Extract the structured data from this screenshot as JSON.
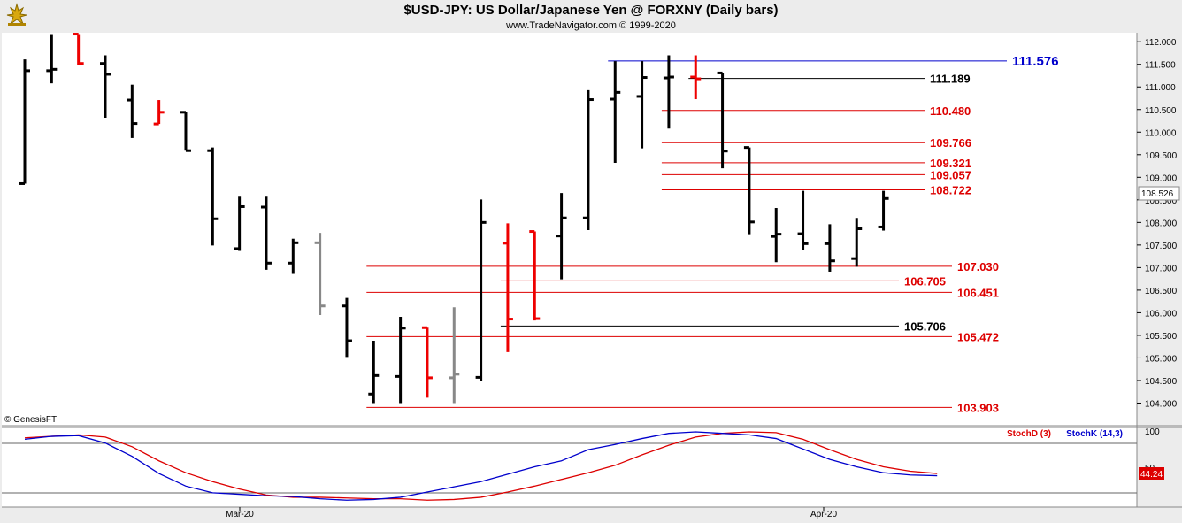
{
  "header": {
    "title": "$USD-JPY:  US Dollar/Japanese Yen @ FORXNY  (Daily bars)",
    "subtitle": "www.TradeNavigator.com © 1999-2020",
    "copyright": "© GenesisFT"
  },
  "chart_data": [
    {
      "type": "ohlc",
      "ylim": [
        103.5,
        112.2
      ],
      "price_ticks": [
        "112.000",
        "111.500",
        "111.000",
        "110.500",
        "110.000",
        "109.500",
        "109.000",
        "108.500",
        "108.000",
        "107.500",
        "107.000",
        "106.500",
        "106.000",
        "105.500",
        "105.000",
        "104.500",
        "104.000"
      ],
      "last_price_label": "108.526",
      "x_ticks": [
        "Mar-20",
        "Apr-20"
      ],
      "bars": [
        {
          "o": 108.86,
          "h": 111.61,
          "l": 108.86,
          "c": 111.36,
          "color": "black"
        },
        {
          "o": 111.36,
          "h": 112.17,
          "l": 111.08,
          "c": 111.39,
          "color": "black"
        },
        {
          "o": 112.17,
          "h": 112.17,
          "l": 111.48,
          "c": 111.52,
          "color": "red"
        },
        {
          "o": 111.52,
          "h": 111.7,
          "l": 110.32,
          "c": 111.28,
          "color": "black"
        },
        {
          "o": 110.71,
          "h": 111.05,
          "l": 109.87,
          "c": 110.19,
          "color": "black"
        },
        {
          "o": 110.18,
          "h": 110.71,
          "l": 110.18,
          "c": 110.44,
          "color": "red"
        },
        {
          "o": 110.44,
          "h": 110.44,
          "l": 109.59,
          "c": 109.59,
          "color": "black"
        },
        {
          "o": 109.59,
          "h": 109.66,
          "l": 107.49,
          "c": 108.08,
          "color": "black"
        },
        {
          "o": 107.42,
          "h": 108.57,
          "l": 107.37,
          "c": 108.35,
          "color": "black"
        },
        {
          "o": 108.34,
          "h": 108.57,
          "l": 106.95,
          "c": 107.1,
          "color": "black"
        },
        {
          "o": 107.1,
          "h": 107.64,
          "l": 106.86,
          "c": 107.55,
          "color": "black"
        },
        {
          "o": 107.55,
          "h": 107.77,
          "l": 105.95,
          "c": 106.15,
          "color": "gray"
        },
        {
          "o": 106.15,
          "h": 106.33,
          "l": 105.02,
          "c": 105.38,
          "color": "black"
        },
        {
          "o": 104.2,
          "h": 105.38,
          "l": 104.0,
          "c": 104.61,
          "color": "black"
        },
        {
          "o": 104.59,
          "h": 105.91,
          "l": 104.0,
          "c": 105.66,
          "color": "black"
        },
        {
          "o": 105.67,
          "h": 105.67,
          "l": 104.12,
          "c": 104.56,
          "color": "red"
        },
        {
          "o": 104.56,
          "h": 106.12,
          "l": 104.0,
          "c": 104.64,
          "color": "gray"
        },
        {
          "o": 104.57,
          "h": 108.51,
          "l": 104.5,
          "c": 108.0,
          "color": "black"
        },
        {
          "o": 107.54,
          "h": 107.98,
          "l": 105.13,
          "c": 105.86,
          "color": "red"
        },
        {
          "o": 107.8,
          "h": 107.8,
          "l": 105.83,
          "c": 105.87,
          "color": "red"
        },
        {
          "o": 107.7,
          "h": 108.65,
          "l": 106.74,
          "c": 108.1,
          "color": "black"
        },
        {
          "o": 108.1,
          "h": 110.93,
          "l": 107.83,
          "c": 110.72,
          "color": "black"
        },
        {
          "o": 110.73,
          "h": 111.57,
          "l": 109.32,
          "c": 110.88,
          "color": "black"
        },
        {
          "o": 110.79,
          "h": 111.57,
          "l": 109.64,
          "c": 111.21,
          "color": "black"
        },
        {
          "o": 111.2,
          "h": 111.7,
          "l": 110.08,
          "c": 111.22,
          "color": "black"
        },
        {
          "o": 111.22,
          "h": 111.7,
          "l": 110.73,
          "c": 111.18,
          "color": "red"
        },
        {
          "o": 111.31,
          "h": 111.31,
          "l": 109.2,
          "c": 109.58,
          "color": "black"
        },
        {
          "o": 109.66,
          "h": 109.66,
          "l": 107.74,
          "c": 108.01,
          "color": "black"
        },
        {
          "o": 107.69,
          "h": 108.32,
          "l": 107.12,
          "c": 107.74,
          "color": "black"
        },
        {
          "o": 107.75,
          "h": 108.7,
          "l": 107.4,
          "c": 107.53,
          "color": "black"
        },
        {
          "o": 107.53,
          "h": 107.96,
          "l": 106.91,
          "c": 107.15,
          "color": "black"
        },
        {
          "o": 107.2,
          "h": 108.1,
          "l": 107.02,
          "c": 107.86,
          "color": "black"
        },
        {
          "o": 107.9,
          "h": 108.7,
          "l": 107.82,
          "c": 108.53,
          "color": "black"
        }
      ],
      "levels": [
        {
          "price": 111.576,
          "label": "111.576",
          "color": "#0000cc",
          "from_bar": 22
        },
        {
          "price": 111.189,
          "label": "111.189",
          "color": "#000000",
          "from_bar": 25
        },
        {
          "price": 110.48,
          "label": "110.480",
          "color": "#dd0000",
          "from_bar": 24
        },
        {
          "price": 109.766,
          "label": "109.766",
          "color": "#dd0000",
          "from_bar": 24
        },
        {
          "price": 109.321,
          "label": "109.321",
          "color": "#dd0000",
          "from_bar": 24
        },
        {
          "price": 109.057,
          "label": "109.057",
          "color": "#dd0000",
          "from_bar": 24
        },
        {
          "price": 108.722,
          "label": "108.722",
          "color": "#dd0000",
          "from_bar": 24
        },
        {
          "price": 107.03,
          "label": "107.030",
          "color": "#dd0000",
          "from_bar": 13
        },
        {
          "price": 106.705,
          "label": "106.705",
          "color": "#dd0000",
          "from_bar": 18
        },
        {
          "price": 106.451,
          "label": "106.451",
          "color": "#dd0000",
          "from_bar": 13
        },
        {
          "price": 105.706,
          "label": "105.706",
          "color": "#000000",
          "from_bar": 18
        },
        {
          "price": 105.472,
          "label": "105.472",
          "color": "#dd0000",
          "from_bar": 13
        },
        {
          "price": 103.903,
          "label": "103.903",
          "color": "#dd0000",
          "from_bar": 13
        }
      ]
    },
    {
      "type": "line",
      "ylim": [
        0,
        100
      ],
      "ticks": [
        "100",
        "50"
      ],
      "last_value_label": "44.24",
      "legend": [
        "StochD (3)",
        "StochK (14,3)"
      ],
      "series": [
        {
          "name": "StochD (3)",
          "color": "#dd0000",
          "values": [
            92,
            94,
            96,
            93,
            80,
            61,
            45,
            33,
            23,
            15,
            12,
            12,
            11,
            10,
            10,
            8,
            9,
            12,
            19,
            27,
            36,
            45,
            55,
            69,
            82,
            93,
            98,
            100,
            99,
            90,
            76,
            63,
            53,
            47,
            44
          ]
        },
        {
          "name": "StochK (14,3)",
          "color": "#0000cc",
          "values": [
            90,
            94,
            95,
            85,
            67,
            44,
            27,
            18,
            16,
            14,
            13,
            10,
            8,
            9,
            12,
            19,
            26,
            33,
            43,
            53,
            61,
            76,
            83,
            91,
            98,
            100,
            98,
            96,
            91,
            77,
            63,
            53,
            45,
            42,
            41
          ]
        }
      ]
    }
  ]
}
